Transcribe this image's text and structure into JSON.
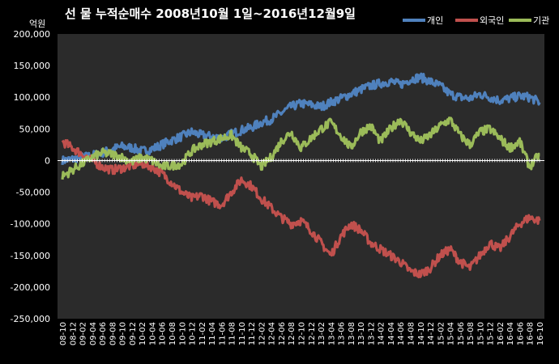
{
  "chart_data": {
    "type": "line",
    "title": "선 물 누적순매수 2008년10월 1일~2016년12월9일",
    "ylabel": "억원",
    "xlabel": "",
    "ylim": [
      -250000,
      200000
    ],
    "yticks": [
      200000,
      150000,
      100000,
      50000,
      0,
      -50000,
      -100000,
      -150000,
      -200000,
      -250000
    ],
    "ytick_labels": [
      "200,000",
      "150,000",
      "100,000",
      "50,000",
      "0",
      "-50,000",
      "-100,000",
      "-150,000",
      "-200,000",
      "-250,000"
    ],
    "x_tick_labels": [
      "08-10",
      "08-12",
      "09-02",
      "09-04",
      "09-06",
      "09-08",
      "09-10",
      "09-12",
      "10-02",
      "10-04",
      "10-06",
      "10-08",
      "10-10",
      "10-12",
      "11-02",
      "11-04",
      "11-06",
      "11-08",
      "11-10",
      "11-12",
      "12-02",
      "12-04",
      "12-06",
      "12-08",
      "12-10",
      "12-12",
      "13-02",
      "13-04",
      "13-06",
      "13-08",
      "13-10",
      "13-12",
      "14-02",
      "14-04",
      "14-06",
      "14-08",
      "14-10",
      "14-12",
      "15-02",
      "15-04",
      "15-06",
      "15-08",
      "15-10",
      "15-12",
      "16-02",
      "16-04",
      "16-06",
      "16-08",
      "16-10"
    ],
    "grid": false,
    "background": "#2b2b2b",
    "legend_position": "top-right",
    "series": [
      {
        "name": "개인",
        "color": "#4f81bd",
        "values": [
          0,
          2000,
          5000,
          8000,
          12000,
          18000,
          22000,
          20000,
          15000,
          18000,
          25000,
          32000,
          38000,
          45000,
          40000,
          38000,
          35000,
          42000,
          48000,
          52000,
          60000,
          65000,
          75000,
          85000,
          90000,
          88000,
          85000,
          92000,
          98000,
          105000,
          112000,
          118000,
          122000,
          125000,
          120000,
          128000,
          132000,
          125000,
          118000,
          105000,
          100000,
          98000,
          105000,
          100000,
          95000,
          98000,
          102000,
          100000,
          92000
        ]
      },
      {
        "name": "외국인",
        "color": "#c0504d",
        "values": [
          30000,
          20000,
          10000,
          0,
          -10000,
          -15000,
          -12000,
          -8000,
          -5000,
          -10000,
          -20000,
          -35000,
          -50000,
          -60000,
          -55000,
          -65000,
          -70000,
          -50000,
          -30000,
          -40000,
          -60000,
          -75000,
          -90000,
          -100000,
          -95000,
          -110000,
          -130000,
          -150000,
          -120000,
          -100000,
          -110000,
          -130000,
          -140000,
          -150000,
          -160000,
          -175000,
          -180000,
          -170000,
          -150000,
          -140000,
          -160000,
          -170000,
          -150000,
          -130000,
          -140000,
          -120000,
          -100000,
          -90000,
          -95000
        ]
      },
      {
        "name": "기관",
        "color": "#9bbb59",
        "values": [
          -25000,
          -15000,
          -5000,
          5000,
          12000,
          10000,
          5000,
          -2000,
          5000,
          0,
          -10000,
          -8000,
          -5000,
          15000,
          25000,
          30000,
          35000,
          40000,
          20000,
          10000,
          -10000,
          5000,
          30000,
          45000,
          20000,
          35000,
          50000,
          60000,
          40000,
          20000,
          45000,
          55000,
          30000,
          50000,
          65000,
          45000,
          30000,
          40000,
          55000,
          65000,
          40000,
          25000,
          45000,
          50000,
          35000,
          20000,
          30000,
          -10000,
          10000
        ]
      }
    ]
  }
}
